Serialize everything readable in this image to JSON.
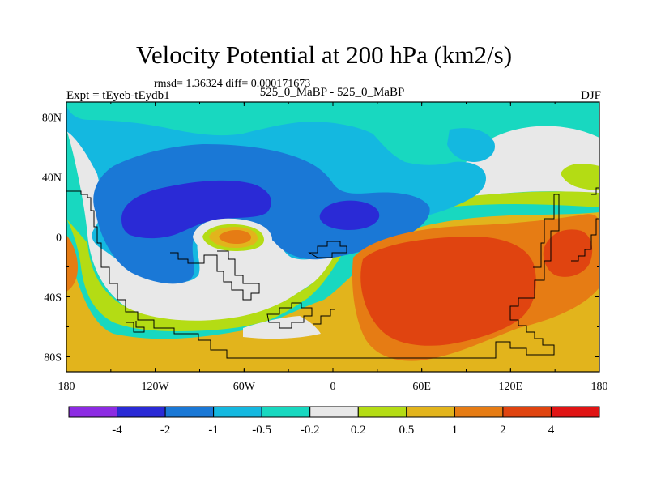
{
  "figure": {
    "title": "Velocity Potential at 200 hPa (km2/s)",
    "stats": "rmsd= 1.36324 diff= 0.000171673",
    "left_label": "Expt = tEyeb-tEydb1",
    "center_label": "525_0_MaBP - 525_0_MaBP",
    "right_label": "DJF"
  },
  "chart_data": {
    "type": "heatmap",
    "projection": "cylindrical equidistant",
    "title": "Velocity Potential at 200 hPa (km2/s)",
    "xlim": [
      -180,
      180
    ],
    "ylim": [
      -90,
      90
    ],
    "x_ticks": [
      {
        "value": -180,
        "label": "180"
      },
      {
        "value": -120,
        "label": "120W"
      },
      {
        "value": -60,
        "label": "60W"
      },
      {
        "value": 0,
        "label": "0"
      },
      {
        "value": 60,
        "label": "60E"
      },
      {
        "value": 120,
        "label": "120E"
      },
      {
        "value": 180,
        "label": "180"
      }
    ],
    "y_ticks": [
      {
        "value": 80,
        "label": "80N"
      },
      {
        "value": 40,
        "label": "40N"
      },
      {
        "value": 0,
        "label": "0"
      },
      {
        "value": -40,
        "label": "40S"
      },
      {
        "value": -80,
        "label": "80S"
      }
    ],
    "colorbar": {
      "levels": [
        "-4",
        "-2",
        "-1",
        "-0.5",
        "-0.2",
        "0.2",
        "0.5",
        "1",
        "2",
        "4"
      ],
      "colors": [
        "#8c2be2",
        "#2a2ad6",
        "#1a78d6",
        "#14b8e0",
        "#18d8c0",
        "#e8e8e8",
        "#b4dc14",
        "#e2b41c",
        "#e67c14",
        "#e04410",
        "#e01414"
      ]
    },
    "regions": [
      {
        "name": "region-band-north",
        "level": "-0.5 to -0.2"
      },
      {
        "name": "region-blue-north",
        "level": "-1 to -0.5"
      },
      {
        "name": "region-low-west",
        "level": "-2 to -1"
      },
      {
        "name": "region-low-west-core",
        "level": "-4 to -2"
      },
      {
        "name": "region-low-mid",
        "level": "-2 to -1"
      },
      {
        "name": "region-low-mid-core",
        "level": "-4 to -2"
      },
      {
        "name": "region-high-east",
        "level": "1 to 2"
      },
      {
        "name": "region-high-east-core",
        "level": "2 to 4"
      },
      {
        "name": "region-high-pacific-core",
        "level": "2 to 4"
      },
      {
        "name": "region-high-small",
        "level": "1 to 2"
      }
    ]
  }
}
